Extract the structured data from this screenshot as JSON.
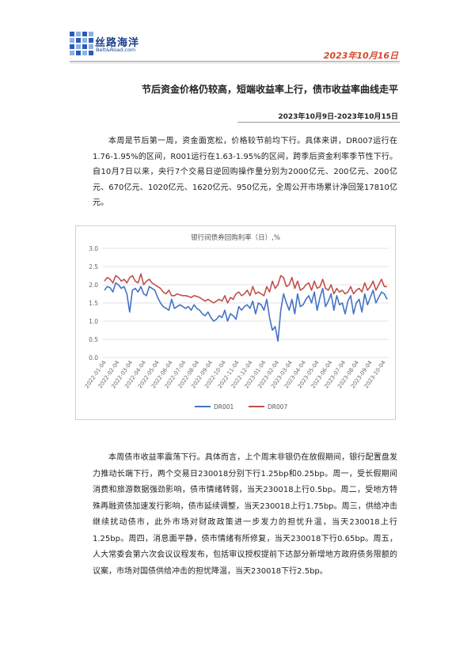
{
  "brand": {
    "name_cn": "丝路海洋",
    "name_en": "Belt&Road.com"
  },
  "header": {
    "date": "2023年10月16日"
  },
  "article": {
    "headline": "节后资金价格仍较高，短端收益率上行，债市收益率曲线走平",
    "period": "2023年10月9日-2023年10月15日",
    "para1": "本周是节后第一周，资金面宽松，价格较节前均下行。具体来讲，DR007运行在1.76-1.95%的区间，R001运行在1.63-1.95%的区间，跨季后资金利率季节性下行。自10月7日以来，央行7个交易日逆回购操作量分别为2000亿元、200亿元、200亿元、670亿元、1020亿元、1620亿元、950亿元，全周公开市场累计净回笼17810亿元。",
    "para2": "本周债市收益率震荡下行。具体而言，上个周末非银仍在放假期间，银行配置盘发力推动长端下行，两个交易日230018分别下行1.25bp和0.25bp。周一，受长假期间消费和旅游数据强劲影响，债市情绪转弱，当天230018上行0.5bp。周二，受地方特殊再融资债加速发行影响，债市延续调整，当天230018上行1.75bp。周三，供给冲击继续扰动债市，此外市场对财政政策进一步发力的担忧升温，当天230018上行1.25bp。周四，消息面平静，债市情绪有所修复，当天230018下行0.65bp。周五，人大常委会第六次会议议程发布，包括审议授权提前下达部分新增地方政府债务限额的议案，市场对国债供给冲击的担忧降温，当天230018下行2.5bp。"
  },
  "chart_data": {
    "type": "line",
    "title": "银行间债券回购利率（日）,%",
    "ylim": [
      0,
      3.0
    ],
    "yticks": [
      "0.0",
      "0.5",
      "1.0",
      "1.5",
      "2.0",
      "2.5",
      "3.0"
    ],
    "xticks": [
      "2022-01-04",
      "2022-02-04",
      "2022-03-04",
      "2022-04-04",
      "2022-05-04",
      "2022-06-04",
      "2022-07-04",
      "2022-08-04",
      "2022-09-04",
      "2022-10-04",
      "2022-11-04",
      "2022-12-04",
      "2023-01-04",
      "2023-02-04",
      "2023-03-04",
      "2023-04-04",
      "2023-05-04",
      "2023-06-04",
      "2023-07-04",
      "2023-08-04",
      "2023-09-04",
      "2023-10-04"
    ],
    "grid": true,
    "legend_position": "bottom",
    "series": [
      {
        "name": "DR001",
        "color": "#4472c4",
        "values": [
          1.85,
          1.95,
          1.92,
          1.8,
          2.05,
          2.0,
          1.9,
          1.95,
          1.75,
          1.25,
          1.85,
          1.9,
          1.8,
          1.95,
          1.75,
          1.7,
          1.95,
          1.9,
          1.85,
          1.65,
          1.5,
          1.4,
          1.35,
          1.3,
          1.6,
          1.35,
          1.4,
          1.45,
          1.4,
          1.35,
          1.4,
          1.3,
          1.45,
          1.35,
          1.3,
          1.2,
          1.15,
          1.25,
          1.1,
          1.0,
          1.05,
          1.15,
          1.1,
          1.3,
          1.0,
          1.2,
          1.15,
          1.05,
          1.4,
          1.3,
          1.4,
          1.45,
          1.35,
          1.55,
          1.2,
          1.5,
          1.45,
          1.3,
          1.6,
          1.1,
          0.75,
          0.85,
          0.45,
          1.3,
          1.75,
          1.5,
          1.3,
          1.6,
          1.2,
          1.75,
          1.4,
          1.45,
          1.6,
          1.7,
          1.5,
          1.8,
          1.3,
          1.65,
          1.9,
          1.4,
          1.55,
          1.75,
          1.3,
          1.7,
          1.45,
          1.5,
          1.2,
          1.55,
          1.7,
          1.2,
          1.5,
          1.6,
          1.25,
          1.75,
          1.45,
          1.65,
          1.85,
          1.5,
          1.65,
          1.8,
          1.75,
          1.6
        ]
      },
      {
        "name": "DR007",
        "color": "#c0504d",
        "values": [
          2.1,
          2.2,
          2.15,
          2.05,
          2.25,
          2.2,
          2.1,
          2.15,
          2.05,
          2.2,
          2.25,
          2.1,
          2.05,
          2.3,
          2.0,
          2.1,
          2.15,
          2.05,
          2.0,
          1.95,
          1.9,
          1.8,
          1.75,
          1.85,
          1.7,
          1.7,
          1.75,
          1.72,
          1.7,
          1.7,
          1.68,
          1.65,
          1.7,
          1.68,
          1.65,
          1.6,
          1.55,
          1.6,
          1.55,
          1.5,
          1.55,
          1.6,
          1.55,
          1.7,
          1.5,
          1.65,
          1.6,
          1.75,
          1.8,
          1.7,
          1.75,
          1.85,
          1.7,
          1.95,
          1.75,
          1.8,
          1.75,
          1.7,
          1.95,
          1.8,
          2.1,
          1.9,
          2.0,
          2.25,
          2.2,
          1.95,
          2.0,
          2.2,
          1.9,
          2.1,
          1.85,
          1.9,
          2.0,
          2.05,
          1.85,
          2.1,
          1.9,
          1.95,
          2.15,
          1.9,
          1.85,
          2.0,
          1.75,
          1.9,
          1.8,
          1.85,
          1.75,
          1.8,
          1.95,
          1.75,
          1.85,
          1.9,
          1.8,
          2.05,
          1.85,
          1.95,
          2.1,
          1.85,
          2.0,
          2.15,
          1.95,
          1.95
        ]
      }
    ]
  }
}
